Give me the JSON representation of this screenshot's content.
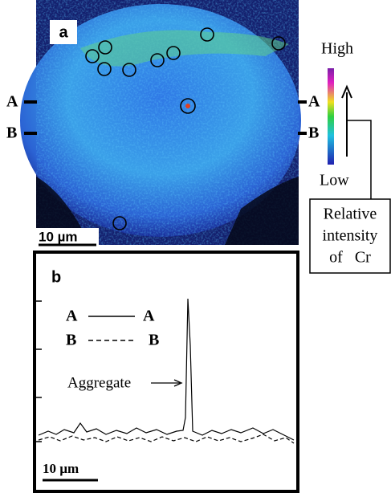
{
  "panel_a": {
    "label": "a",
    "scale_bar": "10 µm",
    "line_markers": {
      "left": [
        "A",
        "B"
      ],
      "right": [
        "A",
        "B"
      ]
    }
  },
  "color_scale": {
    "high": "High",
    "low": "Low",
    "caption": [
      "Relative",
      "intensity",
      "of   Cr"
    ]
  },
  "panel_b": {
    "label": "b",
    "legend": [
      {
        "start": "A",
        "end": "A"
      },
      {
        "start": "B",
        "end": "B"
      }
    ],
    "annotation": "Aggregate",
    "scale_bar": "10 µm"
  }
}
